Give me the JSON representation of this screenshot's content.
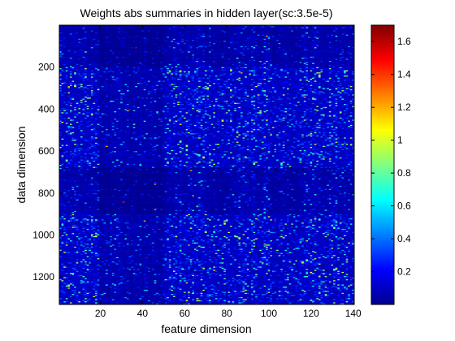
{
  "chart_data": {
    "type": "heatmap",
    "title": "Weights abs summaries in hidden layer(sc:3.5e-5)",
    "xlabel": "feature dimension",
    "ylabel": "data dimension",
    "xlim": [
      1,
      140
    ],
    "ylim": [
      1,
      1330
    ],
    "y_reversed": true,
    "xticks": [
      20,
      40,
      60,
      80,
      100,
      120,
      140
    ],
    "yticks": [
      200,
      400,
      600,
      800,
      1000,
      1200
    ],
    "colorbar": {
      "colormap": "jet",
      "range": [
        0,
        1.7
      ],
      "ticks": [
        0.2,
        0.4,
        0.6,
        0.8,
        1,
        1.2,
        1.4,
        1.6
      ]
    },
    "value_summary": {
      "background_level": 0.1,
      "typical_max": 0.8,
      "peak": 1.7
    },
    "row_bands": [
      {
        "from": 1,
        "to": 200,
        "level": "low"
      },
      {
        "from": 200,
        "to": 680,
        "level": "moderate"
      },
      {
        "from": 680,
        "to": 900,
        "level": "low"
      },
      {
        "from": 900,
        "to": 1330,
        "level": "moderate"
      }
    ],
    "column_bands": [
      {
        "from": 1,
        "to": 20,
        "level": "moderate"
      },
      {
        "from": 20,
        "to": 50,
        "level": "low"
      },
      {
        "from": 55,
        "to": 70,
        "level": "moderate"
      },
      {
        "from": 85,
        "to": 100,
        "level": "moderate"
      },
      {
        "from": 115,
        "to": 135,
        "level": "moderate"
      }
    ]
  }
}
